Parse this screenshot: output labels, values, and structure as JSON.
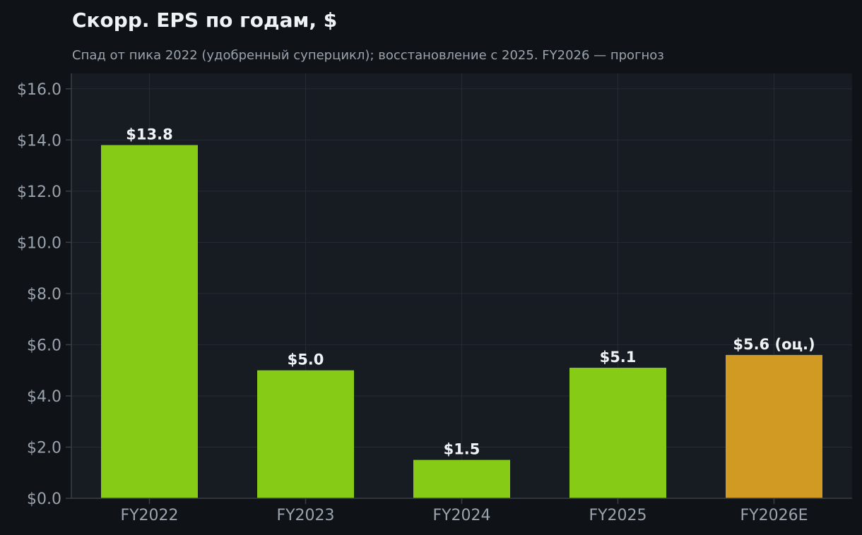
{
  "chart_data": {
    "type": "bar",
    "title": "Скорр. EPS по годам, $",
    "subtitle": "Спад от пика 2022 (удобренный суперцикл); восстановление с 2025. FY2026 — прогноз",
    "xlabel": "",
    "ylabel": "",
    "categories": [
      "FY2022",
      "FY2023",
      "FY2024",
      "FY2025",
      "FY2026E"
    ],
    "values": [
      13.8,
      5.0,
      1.5,
      5.1,
      5.6
    ],
    "data_labels": [
      "$13.8",
      "$5.0",
      "$1.5",
      "$5.1",
      "$5.6 (оц.)"
    ],
    "bar_colors": [
      "#86cc16",
      "#86cc16",
      "#86cc16",
      "#86cc16",
      "#d19a22"
    ],
    "ylim": [
      0,
      16.6
    ],
    "yticks": [
      0,
      2,
      4,
      6,
      8,
      10,
      12,
      14,
      16
    ],
    "ytick_labels": [
      "$0.0",
      "$2.0",
      "$4.0",
      "$6.0",
      "$8.0",
      "$10.0",
      "$12.0",
      "$14.0",
      "$16.0"
    ],
    "grid": true,
    "colors": {
      "page_background": "#0f1317",
      "plot_background": "#171b22",
      "grid": "#262b33",
      "axis": "#3a3f47",
      "actual": "#86cc16",
      "forecast": "#d19a22"
    }
  }
}
